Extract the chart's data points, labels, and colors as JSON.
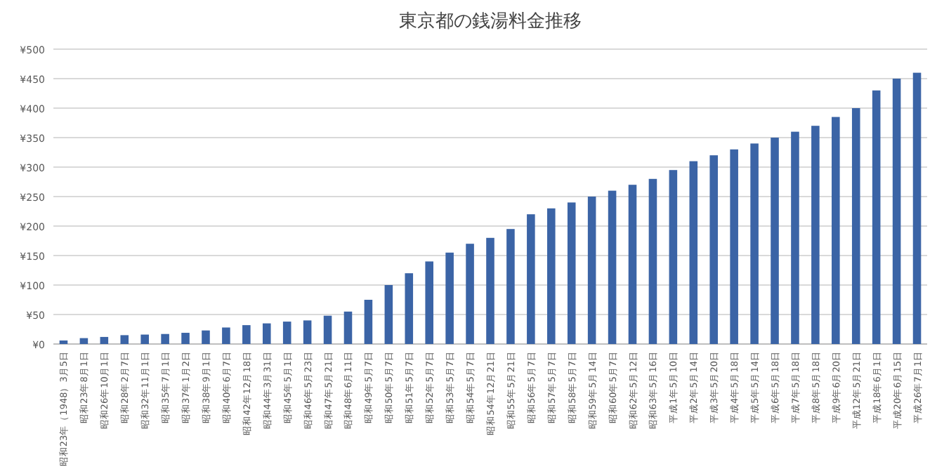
{
  "chart_data": {
    "type": "bar",
    "title": "東京都の銭湯料金推移",
    "categories": [
      "昭和23年（1948）3月5日",
      "昭和23年8月1日",
      "昭和26年10月1日",
      "昭和28年2月7日",
      "昭和32年11月1日",
      "昭和35年7月1日",
      "昭和37年1月2日",
      "昭和38年9月1日",
      "昭和40年6月7日",
      "昭和42年12月18日",
      "昭和44年3月31日",
      "昭和45年5月1日",
      "昭和46年5月23日",
      "昭和47年5月21日",
      "昭和48年6月11日",
      "昭和49年5月7日",
      "昭和50年5月7日",
      "昭和51年5月7日",
      "昭和52年5月7日",
      "昭和53年5月7日",
      "昭和54年5月7日",
      "昭和54年12月21日",
      "昭和55年5月21日",
      "昭和56年5月7日",
      "昭和57年5月7日",
      "昭和58年5月7日",
      "昭和59年5月14日",
      "昭和60年5月7日",
      "昭和62年5月12日",
      "昭和63年5月16日",
      "平成1年5月10日",
      "平成2年5月14日",
      "平成3年5月20日",
      "平成4年5月18日",
      "平成5年5月14日",
      "平成6年5月18日",
      "平成7年5月18日",
      "平成8年5月18日",
      "平成9年6月20日",
      "平成12年5月21日",
      "平成18年6月1日",
      "平成20年6月15日",
      "平成26年7月1日"
    ],
    "values": [
      6,
      10,
      12,
      15,
      16,
      17,
      19,
      23,
      28,
      32,
      35,
      38,
      40,
      48,
      55,
      75,
      100,
      120,
      140,
      155,
      170,
      180,
      195,
      220,
      230,
      240,
      250,
      260,
      270,
      280,
      295,
      310,
      320,
      330,
      340,
      350,
      360,
      370,
      385,
      400,
      430,
      450,
      460
    ],
    "color": "#3b64a6",
    "ylim": [
      0,
      500
    ],
    "yticks": [
      {
        "value": 0,
        "label": "¥0"
      },
      {
        "value": 50,
        "label": "¥50"
      },
      {
        "value": 100,
        "label": "¥100"
      },
      {
        "value": 150,
        "label": "¥150"
      },
      {
        "value": 200,
        "label": "¥200"
      },
      {
        "value": 250,
        "label": "¥250"
      },
      {
        "value": 300,
        "label": "¥300"
      },
      {
        "value": 350,
        "label": "¥350"
      },
      {
        "value": 400,
        "label": "¥400"
      },
      {
        "value": 450,
        "label": "¥450"
      },
      {
        "value": 500,
        "label": "¥500"
      }
    ],
    "grid": "y"
  }
}
